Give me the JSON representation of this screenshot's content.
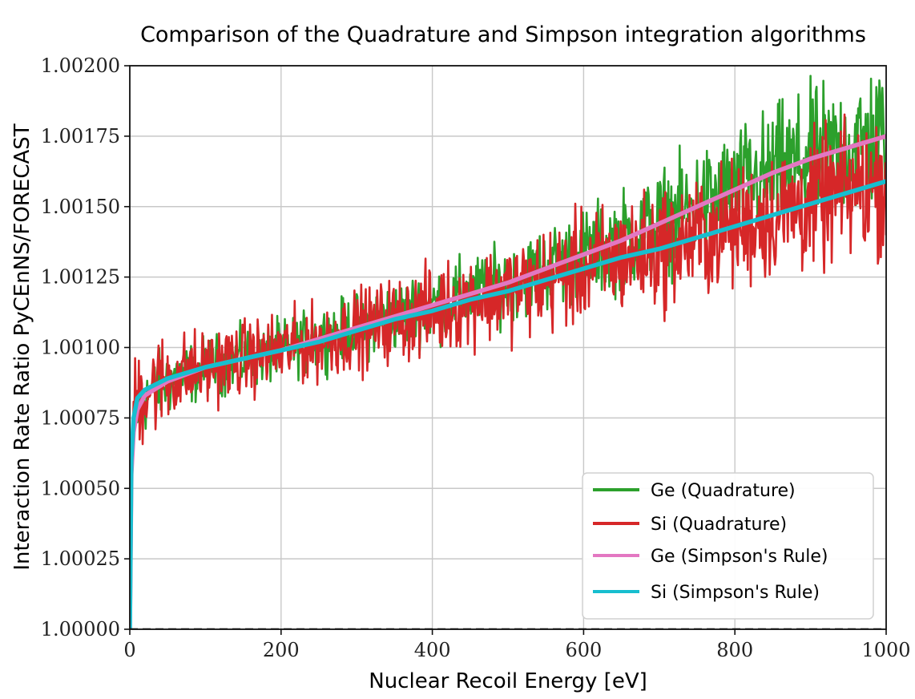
{
  "chart_data": {
    "type": "line",
    "title": "Comparison of the Quadrature and Simpson integration algorithms",
    "xlabel": "Nuclear Recoil Energy [eV]",
    "ylabel": "Interaction Rate Ratio PyCEnNS/FORECAST",
    "xlim": [
      0,
      1000
    ],
    "ylim": [
      1.0,
      1.002
    ],
    "grid": true,
    "legend_position": "lower-right",
    "x_ticks": [
      0,
      200,
      400,
      600,
      800,
      1000
    ],
    "x_tick_labels": [
      "0",
      "200",
      "400",
      "600",
      "800",
      "1000"
    ],
    "y_ticks": [
      1.0,
      1.00025,
      1.0005,
      1.00075,
      1.001,
      1.00125,
      1.0015,
      1.00175,
      1.002
    ],
    "y_tick_labels": [
      "1.00000",
      "1.00025",
      "1.00050",
      "1.00075",
      "1.00100",
      "1.00125",
      "1.00150",
      "1.00175",
      "1.00200"
    ],
    "reference_line": {
      "y": 1.0,
      "style": "dashed",
      "color": "#000000"
    },
    "series": [
      {
        "name": "Ge (Quadrature)",
        "color": "#2ca02c",
        "noisy": true,
        "x": [
          0,
          2,
          5,
          10,
          20,
          50,
          100,
          150,
          200,
          250,
          300,
          350,
          400,
          450,
          500,
          550,
          600,
          650,
          700,
          750,
          800,
          850,
          900,
          950,
          1000
        ],
        "y": [
          1.0,
          1.00055,
          1.0007,
          1.00078,
          1.00083,
          1.00088,
          1.00093,
          1.00096,
          1.00099,
          1.00103,
          1.00107,
          1.00111,
          1.00115,
          1.00119,
          1.00123,
          1.00128,
          1.00133,
          1.00138,
          1.00144,
          1.0015,
          1.00156,
          1.00162,
          1.00167,
          1.00171,
          1.00175
        ],
        "noise_amplitude": [
          0,
          0.0001,
          0.0001,
          0.0001,
          0.0001,
          9e-05,
          8e-05,
          8e-05,
          8e-05,
          8e-05,
          9e-05,
          9e-05,
          0.0001,
          0.0001,
          0.0001,
          0.00011,
          0.00012,
          0.00013,
          0.00014,
          0.00015,
          0.00016,
          0.00017,
          0.00018,
          0.00019,
          0.0002
        ]
      },
      {
        "name": "Si (Quadrature)",
        "color": "#d62728",
        "noisy": true,
        "x": [
          0,
          2,
          5,
          10,
          20,
          50,
          100,
          150,
          200,
          250,
          300,
          350,
          400,
          450,
          500,
          550,
          600,
          650,
          700,
          750,
          800,
          850,
          900,
          950,
          1000
        ],
        "y": [
          1.0,
          1.0006,
          1.00075,
          1.00082,
          1.00085,
          1.00089,
          1.00093,
          1.00096,
          1.00099,
          1.00102,
          1.00106,
          1.0011,
          1.00113,
          1.00117,
          1.0012,
          1.00124,
          1.00128,
          1.00132,
          1.00135,
          1.00139,
          1.00143,
          1.00147,
          1.00151,
          1.00155,
          1.00159
        ],
        "noise_amplitude": [
          0,
          0.00015,
          0.00015,
          0.00015,
          0.00014,
          0.00012,
          0.0001,
          0.0001,
          0.0001,
          0.0001,
          0.00011,
          0.00011,
          0.00012,
          0.00012,
          0.00013,
          0.00014,
          0.00015,
          0.00015,
          0.00016,
          0.00016,
          0.00017,
          0.00017,
          0.00018,
          0.00018,
          0.00019
        ]
      },
      {
        "name": "Ge (Simpson's Rule)",
        "color": "#e377c2",
        "noisy": false,
        "x": [
          0,
          2,
          5,
          10,
          20,
          50,
          100,
          150,
          200,
          250,
          300,
          350,
          400,
          450,
          500,
          550,
          600,
          650,
          700,
          750,
          800,
          850,
          900,
          950,
          1000
        ],
        "y": [
          1.0,
          1.00055,
          1.0007,
          1.00078,
          1.00083,
          1.00088,
          1.00093,
          1.00096,
          1.00099,
          1.00103,
          1.00107,
          1.00111,
          1.00115,
          1.00119,
          1.00123,
          1.00128,
          1.00133,
          1.00138,
          1.00144,
          1.0015,
          1.00156,
          1.00162,
          1.00167,
          1.00171,
          1.00175
        ]
      },
      {
        "name": "Si (Simpson's Rule)",
        "color": "#17becf",
        "noisy": false,
        "x": [
          0,
          2,
          5,
          10,
          20,
          50,
          100,
          150,
          200,
          250,
          300,
          350,
          400,
          450,
          500,
          550,
          600,
          650,
          700,
          750,
          800,
          850,
          900,
          950,
          1000
        ],
        "y": [
          1.0,
          1.0006,
          1.00075,
          1.00082,
          1.00085,
          1.00089,
          1.00093,
          1.00096,
          1.00099,
          1.00102,
          1.00106,
          1.0011,
          1.00113,
          1.00117,
          1.0012,
          1.00124,
          1.00128,
          1.00132,
          1.00135,
          1.00139,
          1.00143,
          1.00147,
          1.00151,
          1.00155,
          1.00159
        ]
      }
    ]
  }
}
